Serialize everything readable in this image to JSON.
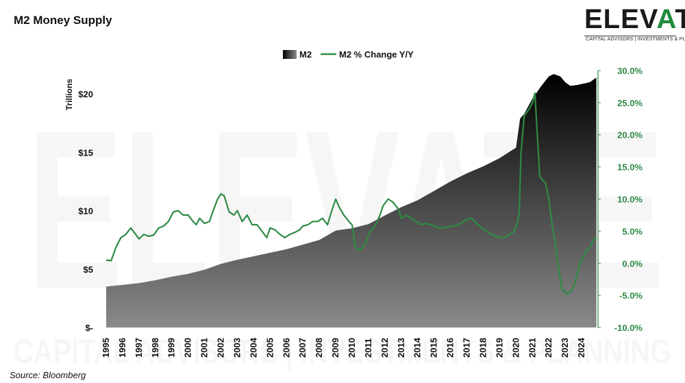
{
  "title": "M2 Money Supply",
  "source": "Source: Bloomberg",
  "logo": {
    "word": "ELEVATE",
    "tagline": "CAPITAL ADVISORS | INVESTMENTS & PLANNING"
  },
  "colors": {
    "m2_fill_top": "#000000",
    "m2_fill_bottom": "#8a8a8a",
    "pct_line": "#2e8b45",
    "right_axis": "#2e8b45"
  },
  "chart_data": {
    "type": "area",
    "title": "M2 Money Supply",
    "legend": {
      "placement": "top-center",
      "entries": [
        "M2",
        "M2 % Change Y/Y"
      ]
    },
    "left_axis": {
      "label": "Trillions",
      "min": 0,
      "max": 22,
      "ticks": [
        0,
        5,
        10,
        15,
        20
      ],
      "tick_labels": [
        "$-",
        "$5",
        "$10",
        "$15",
        "$20"
      ]
    },
    "right_axis": {
      "min": -0.1,
      "max": 0.3,
      "ticks": [
        -0.1,
        -0.05,
        0.0,
        0.05,
        0.1,
        0.15,
        0.2,
        0.25,
        0.3
      ],
      "tick_labels": [
        "-10.0%",
        "-5.0%",
        "0.0%",
        "5.0%",
        "10.0%",
        "15.0%",
        "20.0%",
        "25.0%",
        "30.0%"
      ]
    },
    "x_axis": {
      "min": 1995.0,
      "max": 2025.0,
      "tick_labels": [
        "1995",
        "1996",
        "1997",
        "1998",
        "1999",
        "2000",
        "2001",
        "2002",
        "2003",
        "2004",
        "2005",
        "2006",
        "2007",
        "2008",
        "2009",
        "2010",
        "2011",
        "2012",
        "2013",
        "2014",
        "2015",
        "2016",
        "2017",
        "2018",
        "2019",
        "2020",
        "2021",
        "2022",
        "2023",
        "2024"
      ]
    },
    "series": [
      {
        "name": "M2",
        "axis": "left",
        "kind": "area",
        "x": [
          1995.0,
          1996.0,
          1997.0,
          1998.0,
          1999.0,
          2000.0,
          2001.0,
          2002.0,
          2003.0,
          2004.0,
          2005.0,
          2006.0,
          2007.0,
          2008.0,
          2009.0,
          2010.0,
          2011.0,
          2012.0,
          2013.0,
          2014.0,
          2015.0,
          2016.0,
          2017.0,
          2018.0,
          2019.0,
          2020.0,
          2020.25,
          2020.5,
          2021.0,
          2021.5,
          2022.0,
          2022.3,
          2022.7,
          2023.0,
          2023.3,
          2023.7,
          2024.0,
          2024.5,
          2024.9
        ],
        "y": [
          3.5,
          3.65,
          3.8,
          4.05,
          4.35,
          4.6,
          4.95,
          5.45,
          5.8,
          6.1,
          6.4,
          6.7,
          7.1,
          7.5,
          8.3,
          8.5,
          8.85,
          9.6,
          10.3,
          10.9,
          11.7,
          12.5,
          13.2,
          13.8,
          14.5,
          15.4,
          17.9,
          18.3,
          19.6,
          20.6,
          21.5,
          21.7,
          21.5,
          21.0,
          20.7,
          20.75,
          20.85,
          21.0,
          21.4
        ]
      },
      {
        "name": "M2 % Change Y/Y",
        "axis": "right",
        "kind": "line",
        "x": [
          1995.0,
          1995.3,
          1995.6,
          1995.9,
          1996.2,
          1996.5,
          1996.8,
          1997.0,
          1997.3,
          1997.6,
          1997.9,
          1998.2,
          1998.5,
          1998.8,
          1999.1,
          1999.4,
          1999.7,
          2000.0,
          2000.3,
          2000.5,
          2000.7,
          2001.0,
          2001.3,
          2001.5,
          2001.8,
          2002.0,
          2002.2,
          2002.5,
          2002.8,
          2003.0,
          2003.3,
          2003.6,
          2003.9,
          2004.2,
          2004.5,
          2004.8,
          2005.0,
          2005.3,
          2005.6,
          2005.9,
          2006.2,
          2006.5,
          2006.8,
          2007.0,
          2007.3,
          2007.6,
          2007.9,
          2008.2,
          2008.5,
          2008.8,
          2009.0,
          2009.2,
          2009.5,
          2009.8,
          2010.0,
          2010.2,
          2010.5,
          2010.8,
          2011.1,
          2011.4,
          2011.7,
          2011.9,
          2012.2,
          2012.5,
          2012.8,
          2013.0,
          2013.3,
          2013.6,
          2013.9,
          2014.2,
          2014.5,
          2014.8,
          2015.0,
          2015.3,
          2015.6,
          2015.9,
          2016.2,
          2016.5,
          2016.8,
          2017.0,
          2017.3,
          2017.6,
          2017.9,
          2018.2,
          2018.5,
          2018.8,
          2019.0,
          2019.3,
          2019.6,
          2019.9,
          2020.1,
          2020.2,
          2020.3,
          2020.5,
          2020.8,
          2021.0,
          2021.15,
          2021.3,
          2021.45,
          2021.6,
          2021.8,
          2022.0,
          2022.2,
          2022.4,
          2022.6,
          2022.8,
          2023.0,
          2023.1,
          2023.3,
          2023.5,
          2023.7,
          2023.9,
          2024.1,
          2024.3,
          2024.5,
          2024.7,
          2024.9
        ],
        "y": [
          0.005,
          0.004,
          0.025,
          0.04,
          0.045,
          0.055,
          0.045,
          0.038,
          0.045,
          0.042,
          0.044,
          0.055,
          0.058,
          0.065,
          0.08,
          0.082,
          0.075,
          0.075,
          0.065,
          0.06,
          0.07,
          0.062,
          0.065,
          0.08,
          0.1,
          0.108,
          0.105,
          0.08,
          0.075,
          0.082,
          0.065,
          0.075,
          0.06,
          0.06,
          0.05,
          0.04,
          0.055,
          0.052,
          0.045,
          0.04,
          0.045,
          0.048,
          0.052,
          0.058,
          0.06,
          0.065,
          0.065,
          0.07,
          0.06,
          0.085,
          0.1,
          0.088,
          0.075,
          0.065,
          0.06,
          0.025,
          0.02,
          0.03,
          0.05,
          0.058,
          0.075,
          0.09,
          0.1,
          0.095,
          0.085,
          0.07,
          0.075,
          0.07,
          0.065,
          0.06,
          0.062,
          0.06,
          0.058,
          0.055,
          0.055,
          0.057,
          0.058,
          0.06,
          0.065,
          0.068,
          0.07,
          0.062,
          0.055,
          0.05,
          0.045,
          0.042,
          0.04,
          0.04,
          0.045,
          0.05,
          0.065,
          0.08,
          0.17,
          0.23,
          0.24,
          0.25,
          0.265,
          0.2,
          0.135,
          0.13,
          0.125,
          0.1,
          0.06,
          0.03,
          -0.01,
          -0.04,
          -0.045,
          -0.048,
          -0.045,
          -0.038,
          -0.02,
          0.0,
          0.01,
          0.02,
          0.025,
          0.035,
          0.04
        ]
      }
    ]
  }
}
